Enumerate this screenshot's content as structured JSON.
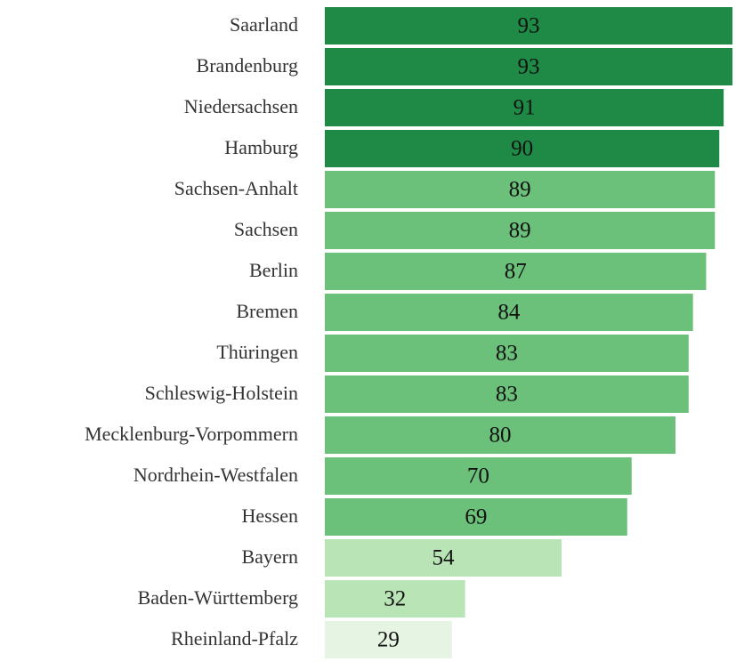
{
  "chart_data": {
    "type": "bar",
    "orientation": "horizontal",
    "categories": [
      "Saarland",
      "Brandenburg",
      "Niedersachsen",
      "Hamburg",
      "Sachsen-Anhalt",
      "Sachsen",
      "Berlin",
      "Bremen",
      "Thüringen",
      "Schleswig-Holstein",
      "Mecklenburg-Vorpommern",
      "Nordrhein-Westfalen",
      "Hessen",
      "Bayern",
      "Baden-Württemberg",
      "Rheinland-Pfalz"
    ],
    "values": [
      93,
      93,
      91,
      90,
      89,
      89,
      87,
      84,
      83,
      83,
      80,
      70,
      69,
      54,
      32,
      29
    ],
    "colors": [
      "#1e8a46",
      "#1e8a46",
      "#1e8a46",
      "#1e8a46",
      "#6cc17a",
      "#6cc17a",
      "#6cc17a",
      "#6cc17a",
      "#6cc17a",
      "#6cc17a",
      "#6cc17a",
      "#6cc17a",
      "#6cc17a",
      "#b9e4b5",
      "#b9e4b5",
      "#e6f5e3"
    ]
  }
}
